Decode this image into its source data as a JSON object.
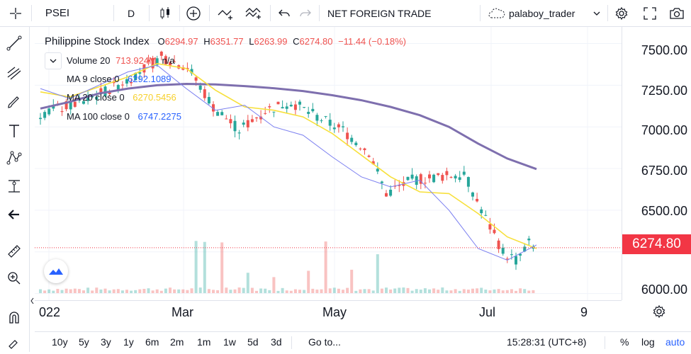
{
  "toolbar": {
    "symbol": "PSEI",
    "interval": "D",
    "indicators_label": "NET FOREIGN TRADE",
    "username": "palaboy_trader"
  },
  "legend": {
    "title": "Philippine Stock Index",
    "open_label": "O",
    "open": "6294.97",
    "high_label": "H",
    "high": "6351.77",
    "low_label": "L",
    "low": "6263.99",
    "close_label": "C",
    "close": "6274.80",
    "change": "−11.44 (−0.18%)"
  },
  "indicators": [
    {
      "label": "Volume 20",
      "value": "713.924M",
      "extra": "n/a",
      "color": "#ef5350"
    },
    {
      "label": "MA 9 close 0",
      "value": "6292.1089",
      "color": "#2962ff"
    },
    {
      "label": "MA 20 close 0",
      "value": "6270.5456",
      "color": "#f7d02c"
    },
    {
      "label": "MA 100 close 0",
      "value": "6747.2275",
      "color": "#2962ff"
    }
  ],
  "price_axis": [
    "7500.00",
    "7250.00",
    "7000.00",
    "6750.00",
    "6500.00",
    "6250.00",
    "6000.00"
  ],
  "last_price": "6274.80",
  "time_axis": [
    "022",
    "Mar",
    "May",
    "Jul",
    "9"
  ],
  "bottom": {
    "ranges": [
      "10y",
      "5y",
      "3y",
      "1y",
      "6m",
      "2m",
      "1m",
      "1w",
      "5d",
      "3d"
    ],
    "goto": "Go to...",
    "clock": "15:28:31 (UTC+8)",
    "percent": "%",
    "log": "log",
    "auto": "auto"
  },
  "colors": {
    "up": "#26a69a",
    "down": "#ef5350",
    "ma9": "#7b7ff0",
    "ma20": "#f7e03c",
    "ma100": "#7e6fae",
    "last_price_bg": "#f23645"
  },
  "chart_data": {
    "type": "candlestick",
    "ylim": [
      5960,
      7600
    ],
    "y_ticks": [
      6000,
      6250,
      6500,
      6750,
      7000,
      7250,
      7500
    ],
    "x_labels": [
      "022",
      "Mar",
      "May",
      "Jul",
      "9"
    ],
    "ma100": [
      7110,
      7150,
      7200,
      7230,
      7250,
      7258,
      7255,
      7245,
      7232,
      7215,
      7190,
      7160,
      7120,
      7070,
      7000,
      6900,
      6810,
      6747
    ],
    "ma20": [
      7210,
      7180,
      7240,
      7300,
      7380,
      7350,
      7220,
      7120,
      7100,
      7060,
      6960,
      6830,
      6700,
      6610,
      6600,
      6480,
      6340,
      6270
    ],
    "ma9": [
      7230,
      7170,
      7250,
      7330,
      7370,
      7230,
      7100,
      7130,
      7000,
      6950,
      6820,
      6700,
      6640,
      6680,
      6500,
      6270,
      6200,
      6292
    ]
  }
}
